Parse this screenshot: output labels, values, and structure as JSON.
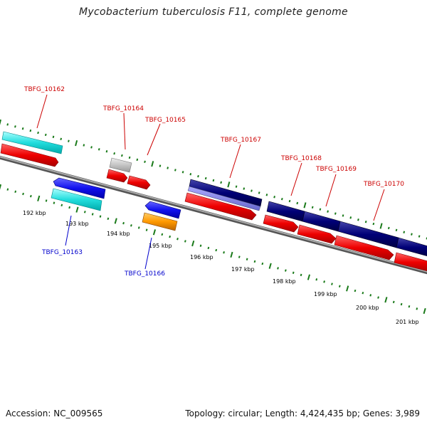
{
  "title": "Mycobacterium tuberculosis F11, complete genome",
  "footer": {
    "accession": "Accession: NC_009565",
    "summary": "Topology: circular; Length: 4,424,435 bp; Genes: 3,989"
  },
  "colors": {
    "label_forward": "#cc0000",
    "label_reverse": "#0000cc",
    "tick": "#1a7a1a",
    "backbone": "#888888"
  },
  "ticks": [
    "192 kbp",
    "193 kbp",
    "194 kbp",
    "195 kbp",
    "196 kbp",
    "197 kbp",
    "198 kbp",
    "199 kbp",
    "200 kbp",
    "201 kbp"
  ],
  "labels_forward": [
    "TBFG_10162",
    "TBFG_10164",
    "TBFG_10165",
    "TBFG_10167",
    "TBFG_10168",
    "TBFG_10169",
    "TBFG_10170"
  ],
  "labels_reverse": [
    "TBFG_10163",
    "TBFG_10166"
  ]
}
